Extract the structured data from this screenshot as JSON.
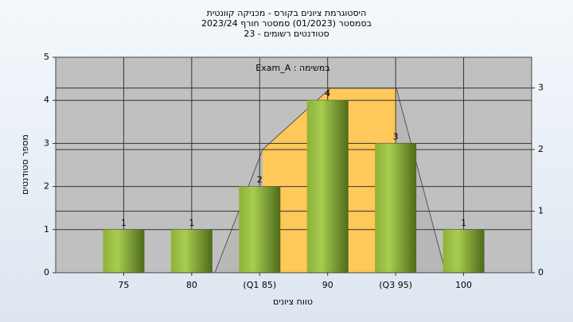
{
  "chart_data": {
    "type": "bar",
    "title": [
      "היסטוגרמת ציונים בקורס - מכניקה קוונטית",
      "בסמסטר  (01/2023)  סמסטר חורף 2023/24",
      "סטודנטים רשומים - 23"
    ],
    "annotation": "במשימה : Exam_A",
    "x_label": "טווח ציונים",
    "y_label": "מספר סטודנטים",
    "categories": [
      "75",
      "80",
      "(Q1 85)",
      "90",
      "(Q3 95)",
      "100"
    ],
    "values": [
      1,
      1,
      2,
      4,
      3,
      1
    ],
    "color": "#a8cc50",
    "ylim": [
      0,
      5
    ],
    "yticks": [
      0,
      1,
      2,
      3,
      4,
      5
    ],
    "y2lim": [
      0,
      3.5
    ],
    "y2ticks": [
      0,
      1,
      2,
      3
    ],
    "grid": true
  }
}
